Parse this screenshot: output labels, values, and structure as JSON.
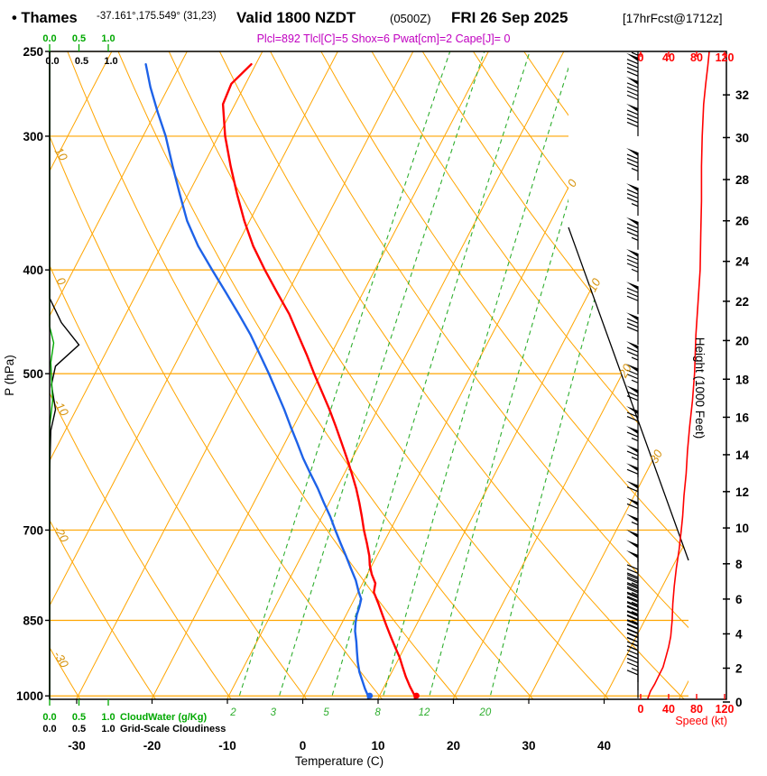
{
  "header": {
    "bullet_station": "• Thames",
    "coords": "-37.161°,175.549° (31,23)",
    "valid_main": "Valid 1800 NZDT",
    "valid_z": "(0500Z)",
    "valid_date": "FRI 26 Sep 2025",
    "fcst_tag": "[17hrFcst@1712z]",
    "params_line": "Plcl=892 Tlcl[C]=5 Shox=6 Pwat[cm]=2 Cape[J]= 0"
  },
  "colors": {
    "grid_orange": "#FFA500",
    "label_orange": "#d6920a",
    "mixing_green": "#2eae2e",
    "cloud_green": "#00a800",
    "temp_red": "#ff0000",
    "dewpoint_blue": "#1e62e8",
    "params_magenta": "#c000c0"
  },
  "chart_data": {
    "type": "skewt-logp-sounding",
    "station": "Thames",
    "axes": {
      "pressure": {
        "label": "P (hPa)",
        "ticks": [
          250,
          300,
          400,
          500,
          700,
          850,
          1000
        ]
      },
      "temperature": {
        "label": "Temperature (C)",
        "ticks": [
          -30,
          -20,
          -10,
          0,
          10,
          20,
          30,
          40
        ]
      },
      "height": {
        "label": "Height (1000 Feet)",
        "ticks": [
          0,
          2,
          4,
          6,
          8,
          10,
          12,
          14,
          16,
          18,
          20,
          22,
          24,
          26,
          28,
          30,
          32
        ]
      },
      "speed": {
        "label": "Speed (kt)",
        "ticks": [
          0,
          40,
          80,
          120
        ]
      },
      "cloud_scale": {
        "ticks": [
          "0.0",
          "0.5",
          "1.0"
        ],
        "cloudwater_label": "CloudWater (g/Kg)",
        "cloudiness_label": "Grid-Scale Cloudiness"
      }
    },
    "grid": {
      "isotherm_step_c": 10,
      "mixing_ratio_lines_gkg": [
        2,
        3,
        5,
        8,
        12,
        20
      ],
      "isotherm_edge_labels": [
        0,
        10,
        20,
        30
      ],
      "dry_adiabat_edge_labels": [
        10,
        0,
        -10,
        -20,
        -30
      ]
    },
    "surface": {
      "temp_c": 14.9,
      "dewpoint_c": 8.7
    },
    "temperature_profile": [
      [
        257,
        -50.6
      ],
      [
        268,
        -51.9
      ],
      [
        280,
        -51.6
      ],
      [
        300,
        -49.1
      ],
      [
        320,
        -46.3
      ],
      [
        340,
        -43.5
      ],
      [
        360,
        -40.7
      ],
      [
        380,
        -37.8
      ],
      [
        400,
        -34.6
      ],
      [
        420,
        -31.4
      ],
      [
        440,
        -28.3
      ],
      [
        460,
        -25.7
      ],
      [
        480,
        -23.2
      ],
      [
        500,
        -20.9
      ],
      [
        520,
        -18.6
      ],
      [
        540,
        -16.4
      ],
      [
        560,
        -14.4
      ],
      [
        580,
        -12.5
      ],
      [
        600,
        -10.7
      ],
      [
        620,
        -9.0
      ],
      [
        640,
        -7.4
      ],
      [
        660,
        -6.0
      ],
      [
        680,
        -4.7
      ],
      [
        700,
        -3.5
      ],
      [
        720,
        -2.2
      ],
      [
        740,
        -1.0
      ],
      [
        755,
        -0.3
      ],
      [
        770,
        0.6
      ],
      [
        785,
        1.7
      ],
      [
        800,
        2.1
      ],
      [
        820,
        3.5
      ],
      [
        840,
        4.8
      ],
      [
        860,
        6.1
      ],
      [
        880,
        7.4
      ],
      [
        900,
        8.7
      ],
      [
        920,
        10.0
      ],
      [
        940,
        11.1
      ],
      [
        960,
        12.2
      ],
      [
        980,
        13.4
      ],
      [
        1000,
        14.7
      ],
      [
        1006,
        14.9
      ]
    ],
    "dewpoint_profile": [
      [
        257,
        -64.6
      ],
      [
        270,
        -62.4
      ],
      [
        285,
        -59.7
      ],
      [
        300,
        -57.0
      ],
      [
        320,
        -54.0
      ],
      [
        340,
        -51.1
      ],
      [
        360,
        -48.3
      ],
      [
        380,
        -45.1
      ],
      [
        400,
        -41.6
      ],
      [
        420,
        -38.2
      ],
      [
        440,
        -35.0
      ],
      [
        460,
        -32.0
      ],
      [
        480,
        -29.4
      ],
      [
        500,
        -26.9
      ],
      [
        520,
        -24.6
      ],
      [
        540,
        -22.4
      ],
      [
        560,
        -20.4
      ],
      [
        580,
        -18.4
      ],
      [
        600,
        -16.5
      ],
      [
        620,
        -14.5
      ],
      [
        640,
        -12.5
      ],
      [
        660,
        -10.7
      ],
      [
        680,
        -8.9
      ],
      [
        700,
        -7.3
      ],
      [
        720,
        -5.7
      ],
      [
        740,
        -4.1
      ],
      [
        760,
        -2.6
      ],
      [
        780,
        -1.1
      ],
      [
        800,
        0.1
      ],
      [
        812,
        0.9
      ],
      [
        826,
        1.2
      ],
      [
        840,
        1.4
      ],
      [
        855,
        1.8
      ],
      [
        870,
        2.3
      ],
      [
        890,
        3.2
      ],
      [
        910,
        4.0
      ],
      [
        930,
        4.8
      ],
      [
        950,
        5.7
      ],
      [
        970,
        6.8
      ],
      [
        985,
        7.6
      ],
      [
        1000,
        8.5
      ],
      [
        1006,
        8.7
      ]
    ],
    "wind_speed_profile_kt": [
      [
        250,
        98
      ],
      [
        258,
        96
      ],
      [
        268,
        93
      ],
      [
        280,
        90
      ],
      [
        300,
        88
      ],
      [
        320,
        87
      ],
      [
        345,
        87
      ],
      [
        370,
        86
      ],
      [
        400,
        85
      ],
      [
        430,
        82
      ],
      [
        460,
        79
      ],
      [
        500,
        77
      ],
      [
        530,
        74
      ],
      [
        560,
        70
      ],
      [
        590,
        67
      ],
      [
        620,
        65
      ],
      [
        650,
        62
      ],
      [
        680,
        60
      ],
      [
        700,
        58
      ],
      [
        730,
        55
      ],
      [
        760,
        51
      ],
      [
        790,
        48
      ],
      [
        820,
        46
      ],
      [
        850,
        45
      ],
      [
        880,
        43
      ],
      [
        900,
        40
      ],
      [
        920,
        36
      ],
      [
        940,
        32
      ],
      [
        960,
        25
      ],
      [
        975,
        20
      ],
      [
        990,
        14
      ],
      [
        1006,
        10
      ]
    ],
    "wind_barbs": [
      [
        255,
        95
      ],
      [
        269,
        90
      ],
      [
        283,
        90
      ],
      [
        300,
        90
      ],
      [
        330,
        85
      ],
      [
        356,
        85
      ],
      [
        383,
        85
      ],
      [
        410,
        85
      ],
      [
        440,
        80
      ],
      [
        470,
        80
      ],
      [
        500,
        75
      ],
      [
        525,
        75
      ],
      [
        550,
        70
      ],
      [
        575,
        70
      ],
      [
        600,
        65
      ],
      [
        625,
        65
      ],
      [
        650,
        60
      ],
      [
        675,
        60
      ],
      [
        700,
        60
      ],
      [
        725,
        55
      ],
      [
        750,
        50
      ],
      [
        767,
        50
      ],
      [
        784,
        50
      ],
      [
        801,
        45
      ],
      [
        818,
        45
      ],
      [
        835,
        45
      ],
      [
        852,
        45
      ],
      [
        869,
        45
      ],
      [
        886,
        40
      ],
      [
        903,
        40
      ],
      [
        920,
        35
      ],
      [
        937,
        30
      ],
      [
        954,
        30
      ],
      [
        971,
        20
      ],
      [
        988,
        15
      ],
      [
        1005,
        10
      ]
    ],
    "cloudiness_profile": [
      [
        250,
        0
      ],
      [
        425,
        0
      ],
      [
        448,
        0.2
      ],
      [
        470,
        0.5
      ],
      [
        492,
        0.1
      ],
      [
        512,
        0.03
      ],
      [
        540,
        0.1
      ],
      [
        565,
        0.02
      ],
      [
        620,
        0
      ],
      [
        1006,
        0
      ]
    ],
    "cloudwater_profile": [
      [
        250,
        0
      ],
      [
        452,
        0
      ],
      [
        468,
        0.07
      ],
      [
        488,
        0.02
      ],
      [
        530,
        0.05
      ],
      [
        560,
        0
      ],
      [
        1006,
        0
      ]
    ]
  }
}
